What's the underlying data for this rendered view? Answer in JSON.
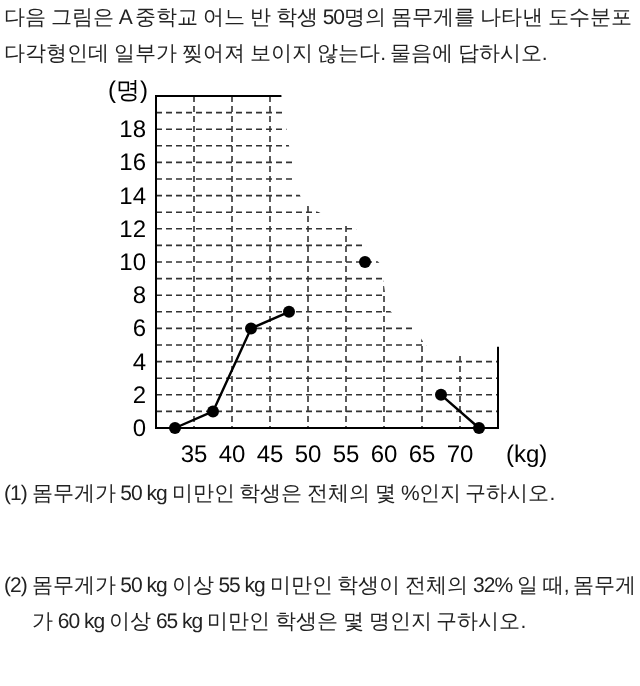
{
  "chart_data": {
    "type": "line",
    "title": "다음 그림은 A 중학교 어느 반 학생 50명의 몸무게를 나타낸 도수분포다각형인데 일부가 찢어져 보이지 않는다. 물음에 답하시오.",
    "x": [
      32.5,
      37.5,
      42.5,
      47.5,
      52.5,
      57.5,
      62.5,
      67.5,
      72.5
    ],
    "series": [
      {
        "color": "#000000",
        "values": [
          0,
          1,
          6,
          7,
          null,
          10,
          null,
          2,
          0
        ]
      }
    ],
    "marker": "circle",
    "xlim": [
      30,
      75
    ],
    "xticks": [
      35,
      40,
      45,
      50,
      55,
      60,
      65,
      70
    ],
    "ylim": [
      0,
      20
    ],
    "yticks": [
      0,
      {
        "value": 1,
        "label": null
      },
      2,
      {
        "value": 3,
        "label": null
      },
      4,
      {
        "value": 5,
        "label": null
      },
      6,
      {
        "value": 7,
        "label": null
      },
      8,
      {
        "value": 9,
        "label": null
      },
      10,
      {
        "value": 11,
        "label": null
      },
      12,
      {
        "value": 13,
        "label": null
      },
      14,
      {
        "value": 15,
        "label": null
      },
      16,
      {
        "value": 17,
        "label": null
      },
      18,
      {
        "value": 19,
        "label": null
      }
    ],
    "xlabel": "(kg)",
    "ylabel": "(명)",
    "grid": true,
    "annotations": [
      "(1) 몸무게가 50 kg 미만인 학생은 전체의 몇 %인지 구하시오.",
      "(2) 몸무게가 50 kg 이상 55 kg 미만인 학생이 전체의 32% 일 때, 몸무게가 60 kg 이상 65 kg 미만인 학생은 몇 명인지 구하시오."
    ]
  }
}
